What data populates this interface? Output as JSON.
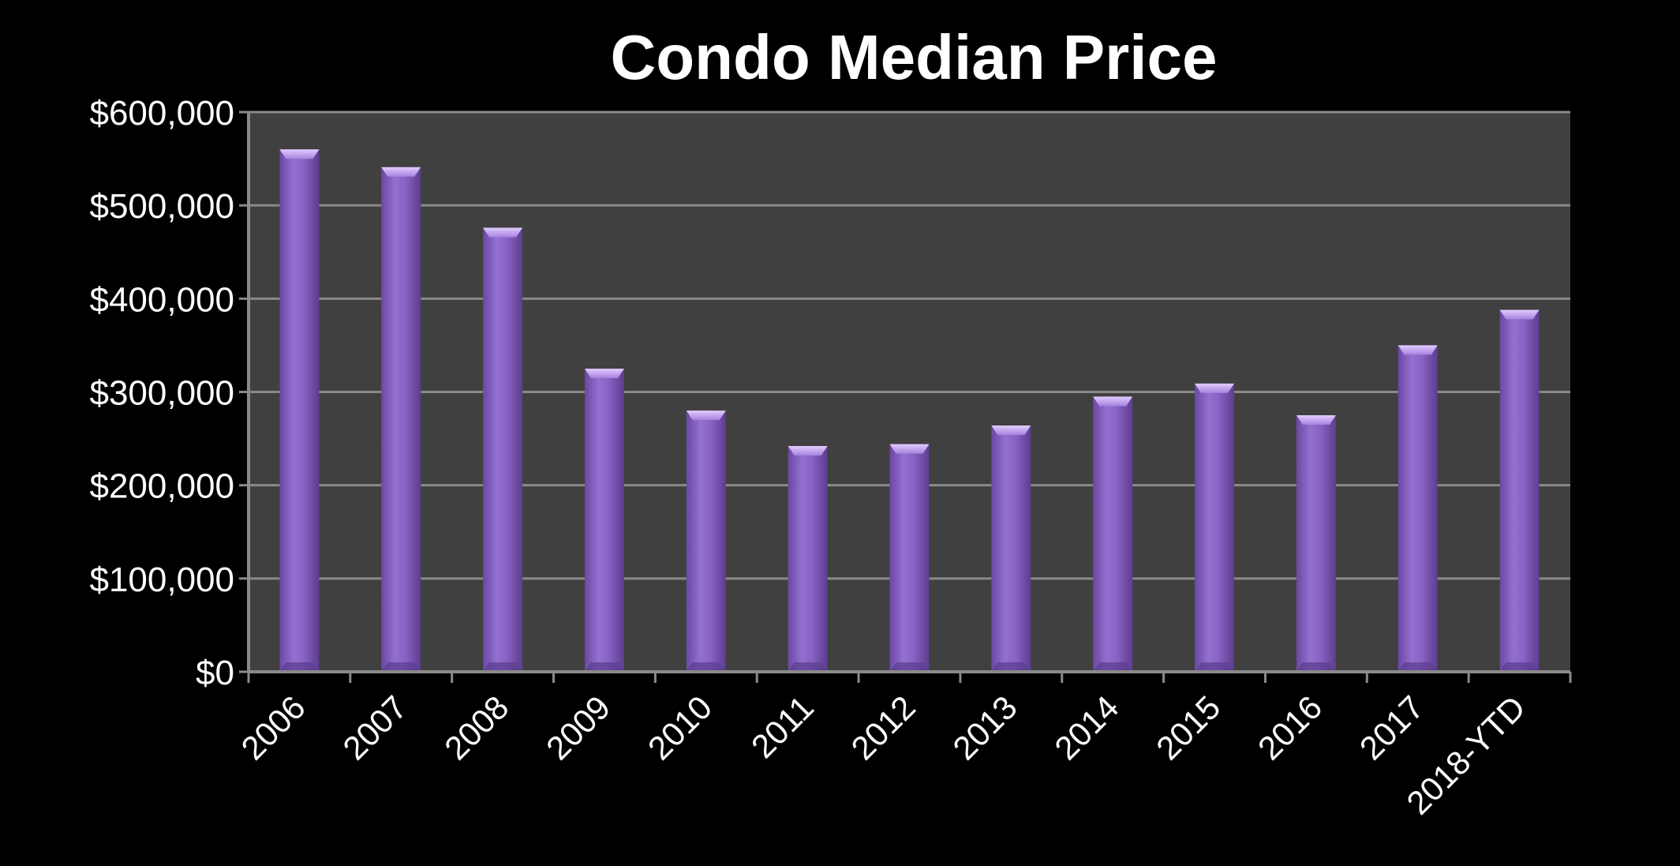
{
  "chart_data": {
    "type": "bar",
    "title": "Condo Median Price",
    "xlabel": "",
    "ylabel": "",
    "categories": [
      "2006",
      "2007",
      "2008",
      "2009",
      "2010",
      "2011",
      "2012",
      "2013",
      "2014",
      "2015",
      "2016",
      "2017",
      "2018-YTD"
    ],
    "series": [
      {
        "values": [
          560000,
          541000,
          476000,
          325000,
          280000,
          242000,
          244000,
          264000,
          295000,
          309000,
          275000,
          350000,
          388000
        ]
      }
    ],
    "ylim": [
      0,
      600000
    ],
    "yticks": [
      0,
      100000,
      200000,
      300000,
      400000,
      500000,
      600000
    ],
    "ytick_labels": [
      "$0",
      "$100,000",
      "$200,000",
      "$300,000",
      "$400,000",
      "$500,000",
      "$600,000"
    ],
    "grid": true,
    "legend": "none",
    "colors": {
      "background": "#000000",
      "plot_area": "#404040",
      "gridline": "#8a8a8a",
      "bar": "#8a63c4",
      "bar_top": "#c9a8f2",
      "text": "#ffffff"
    }
  }
}
